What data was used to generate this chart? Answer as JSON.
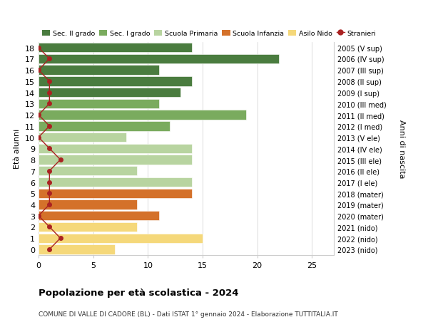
{
  "ages": [
    18,
    17,
    16,
    15,
    14,
    13,
    12,
    11,
    10,
    9,
    8,
    7,
    6,
    5,
    4,
    3,
    2,
    1,
    0
  ],
  "right_labels": [
    "2005 (V sup)",
    "2006 (IV sup)",
    "2007 (III sup)",
    "2008 (II sup)",
    "2009 (I sup)",
    "2010 (III med)",
    "2011 (II med)",
    "2012 (I med)",
    "2013 (V ele)",
    "2014 (IV ele)",
    "2015 (III ele)",
    "2016 (II ele)",
    "2017 (I ele)",
    "2018 (mater)",
    "2019 (mater)",
    "2020 (mater)",
    "2021 (nido)",
    "2022 (nido)",
    "2023 (nido)"
  ],
  "bar_values": [
    14,
    22,
    11,
    14,
    13,
    11,
    19,
    12,
    8,
    14,
    14,
    9,
    14,
    14,
    9,
    11,
    9,
    15,
    7
  ],
  "bar_colors": [
    "#4a7c3f",
    "#4a7c3f",
    "#4a7c3f",
    "#4a7c3f",
    "#4a7c3f",
    "#7aab5e",
    "#7aab5e",
    "#7aab5e",
    "#b8d4a0",
    "#b8d4a0",
    "#b8d4a0",
    "#b8d4a0",
    "#b8d4a0",
    "#d4712a",
    "#d4712a",
    "#d4712a",
    "#f5d87a",
    "#f5d87a",
    "#f5d87a"
  ],
  "stranieri_x": [
    0,
    1,
    0,
    1,
    1,
    1,
    0,
    1,
    0,
    1,
    2,
    1,
    1,
    1,
    1,
    0,
    1,
    2,
    1
  ],
  "legend_labels": [
    "Sec. II grado",
    "Sec. I grado",
    "Scuola Primaria",
    "Scuola Infanzia",
    "Asilo Nido",
    "Stranieri"
  ],
  "legend_colors": [
    "#4a7c3f",
    "#7aab5e",
    "#b8d4a0",
    "#d4712a",
    "#f5d87a",
    "#aa2222"
  ],
  "title": "Popolazione per età scolastica - 2024",
  "subtitle": "COMUNE DI VALLE DI CADORE (BL) - Dati ISTAT 1° gennaio 2024 - Elaborazione TUTTITALIA.IT",
  "ylabel": "Età alunni",
  "right_ylabel": "Anni di nascita",
  "xlabel_ticks": [
    0,
    5,
    10,
    15,
    20,
    25
  ],
  "xlim": [
    0,
    27
  ],
  "ylim": [
    -0.5,
    18.5
  ],
  "bar_height": 0.85,
  "background_color": "#ffffff",
  "grid_color": "#cccccc"
}
